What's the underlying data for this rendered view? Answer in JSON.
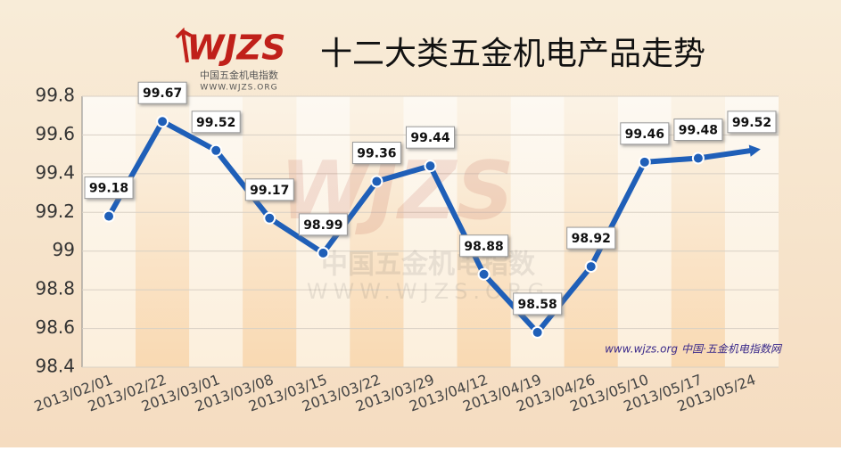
{
  "chart_data": {
    "type": "line",
    "title": "十二大类五金机电产品走势",
    "categories": [
      "2013/02/01",
      "2013/02/22",
      "2013/03/01",
      "2013/03/08",
      "2013/03/15",
      "2013/03/22",
      "2013/03/29",
      "2013/04/12",
      "2013/04/19",
      "2013/04/26",
      "2013/05/10",
      "2013/05/17",
      "2013/05/24"
    ],
    "values": [
      99.18,
      99.67,
      99.52,
      99.17,
      98.99,
      99.36,
      99.44,
      98.88,
      98.58,
      98.92,
      99.46,
      99.48,
      99.52
    ],
    "color": "#1f5fb8",
    "ylim": [
      98.4,
      99.8
    ],
    "yticks": [
      98.4,
      98.6,
      98.8,
      99,
      99.2,
      99.4,
      99.6,
      99.8
    ],
    "grid": true
  },
  "logo": {
    "mark": "WJZS",
    "name": "中国五金机电指数",
    "url": "WWW.WJZS.ORG"
  },
  "footer": {
    "url": "www.wjzs.org",
    "site": "中国·五金机电指数网"
  }
}
